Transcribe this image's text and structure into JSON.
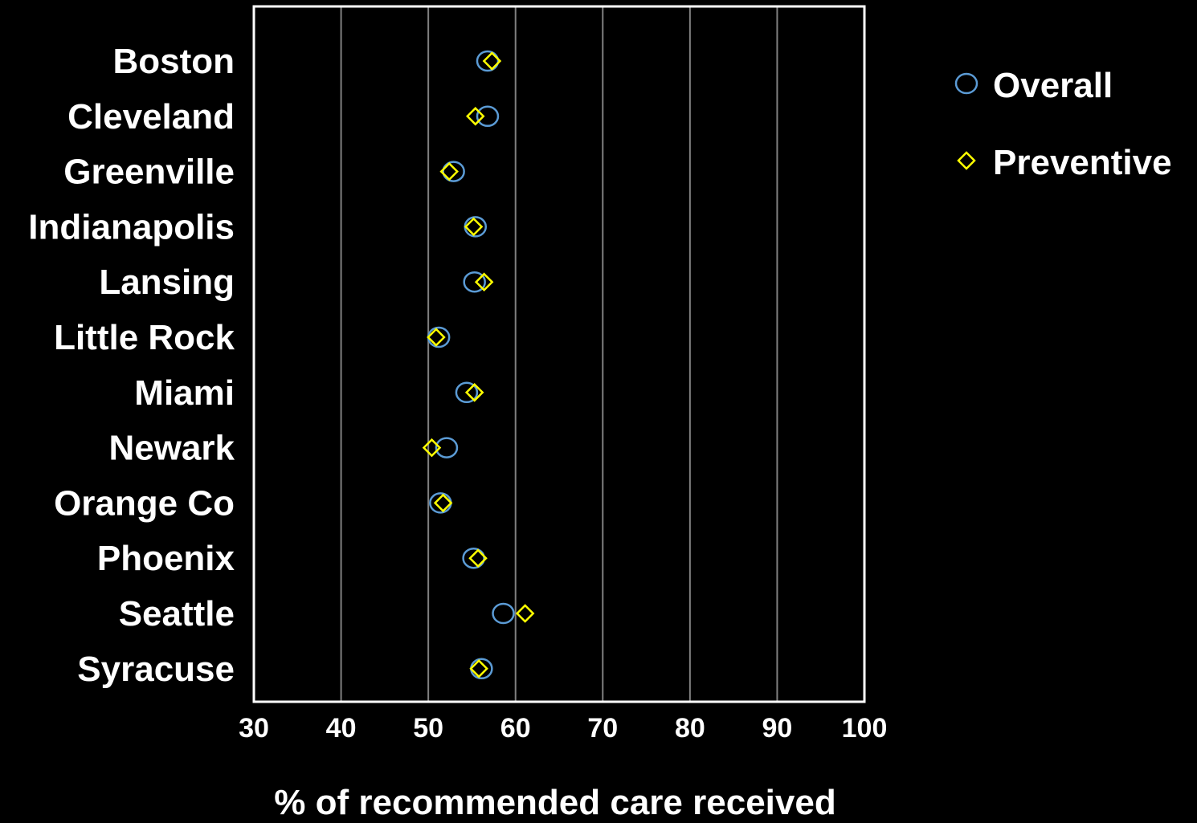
{
  "chart_data": {
    "type": "scatter",
    "title": "",
    "xlabel": "% of recommended care received",
    "ylabel": "",
    "xlim": [
      30,
      100
    ],
    "xticks": [
      "30",
      "40",
      "50",
      "60",
      "70",
      "80",
      "90",
      "100"
    ],
    "grid": "vertical",
    "legend_position": "top-right",
    "categories": [
      "Boston",
      "Cleveland",
      "Greenville",
      "Indianapolis",
      "Lansing",
      "Little Rock",
      "Miami",
      "Newark",
      "Orange Co",
      "Phoenix",
      "Seattle",
      "Syracuse"
    ],
    "series": [
      {
        "name": "Overall",
        "marker": "circle",
        "color": "#5b9bd5",
        "values": [
          56.8,
          56.8,
          52.9,
          55.4,
          55.3,
          51.2,
          54.4,
          52.1,
          51.4,
          55.2,
          58.6,
          56.1
        ]
      },
      {
        "name": "Preventive",
        "marker": "diamond",
        "color": "#ffff00",
        "values": [
          57.3,
          55.4,
          52.4,
          55.2,
          56.4,
          50.9,
          55.3,
          50.4,
          51.7,
          55.7,
          61.1,
          55.8
        ]
      }
    ]
  },
  "colors": {
    "background": "#000000",
    "text": "#ffffff",
    "frame": "#ffffff",
    "grid": "#808080"
  }
}
